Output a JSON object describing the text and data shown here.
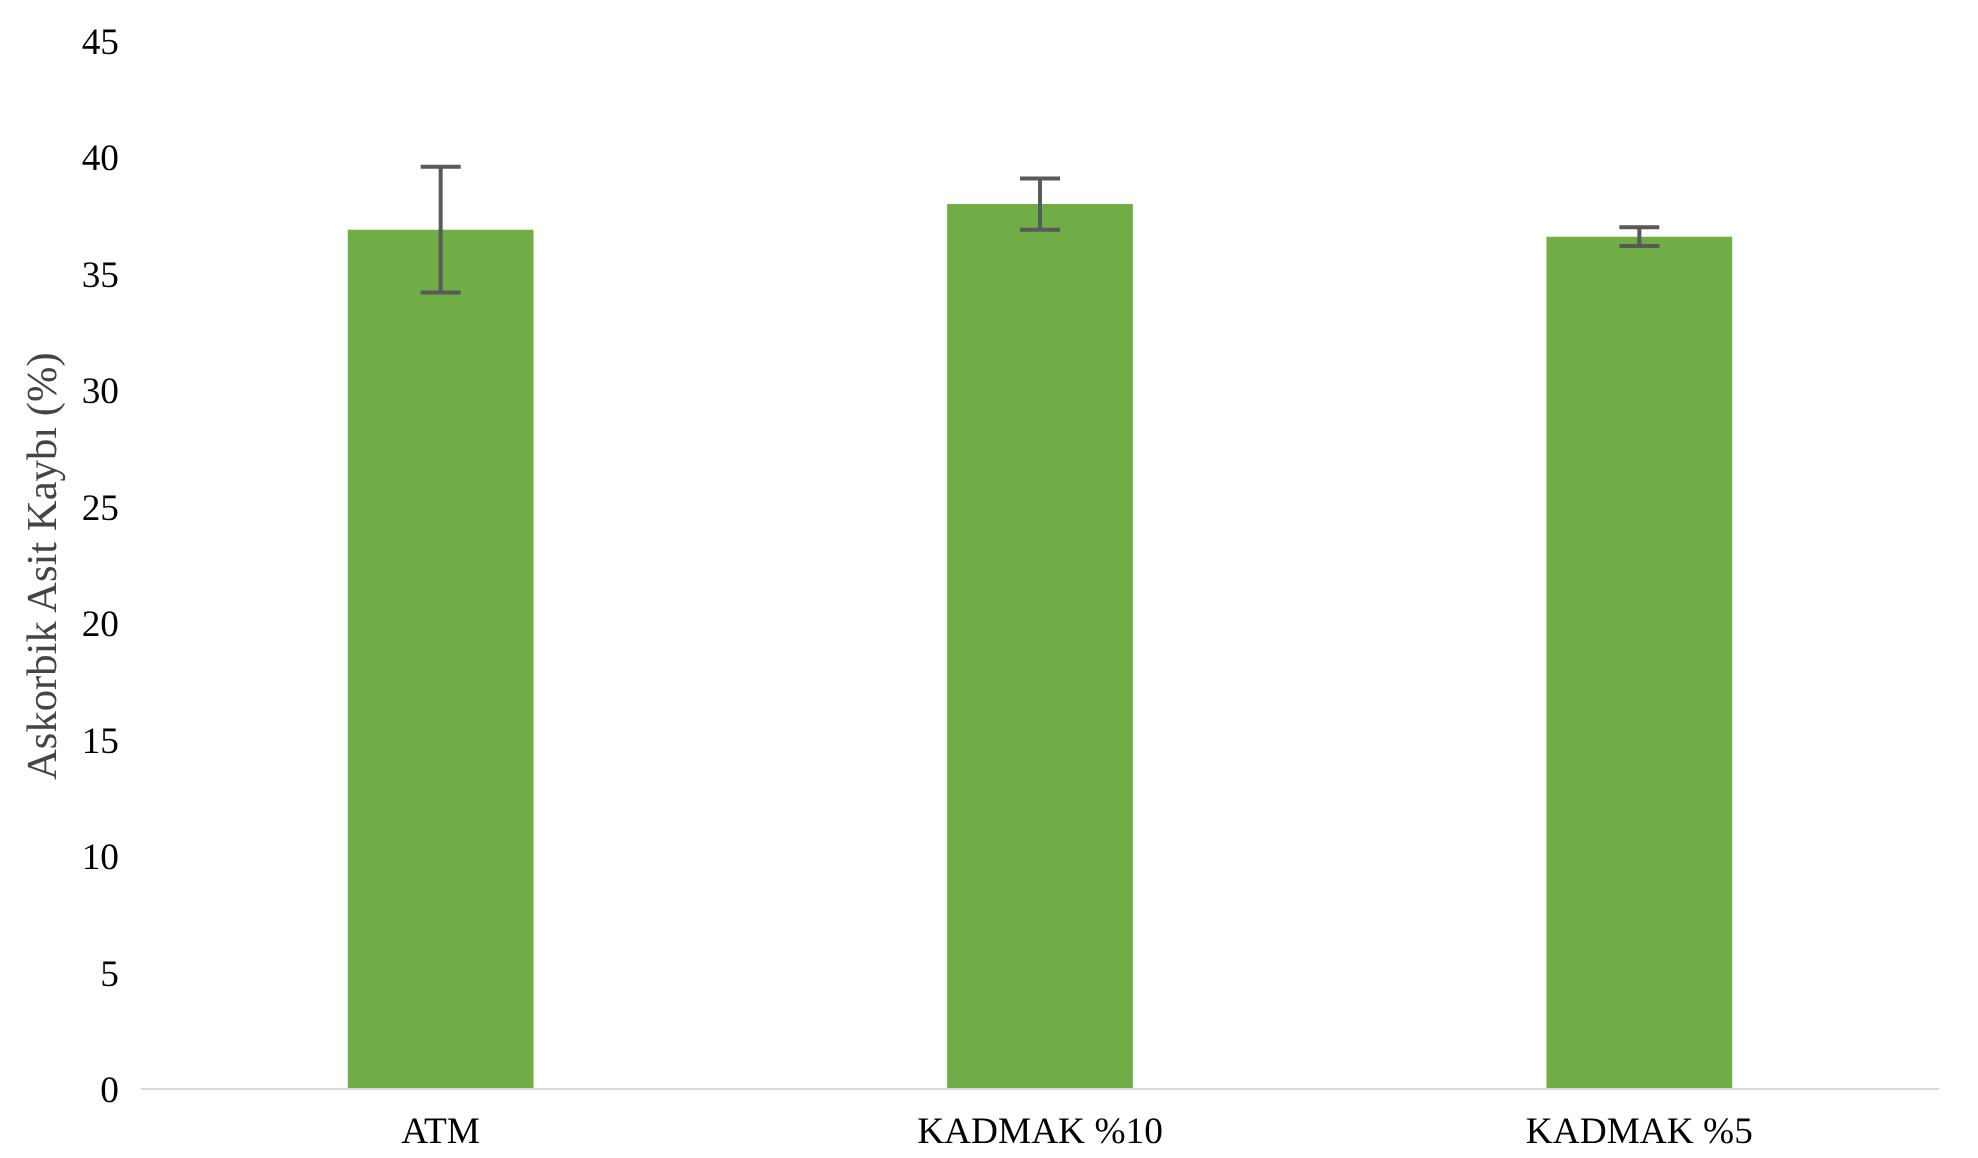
{
  "chart_data": {
    "type": "bar",
    "ylabel": "Askorbik Asit Kaybı (%)",
    "categories": [
      "ATM",
      "KADMAK %10",
      "KADMAK %5"
    ],
    "values": [
      36.9,
      38.0,
      36.6
    ],
    "errors": [
      2.7,
      1.1,
      0.4
    ],
    "color": "#70ad47",
    "ylim": [
      0,
      45
    ],
    "yticks": [
      0,
      5,
      10,
      15,
      20,
      25,
      30,
      35,
      40,
      45
    ],
    "grid": false
  }
}
